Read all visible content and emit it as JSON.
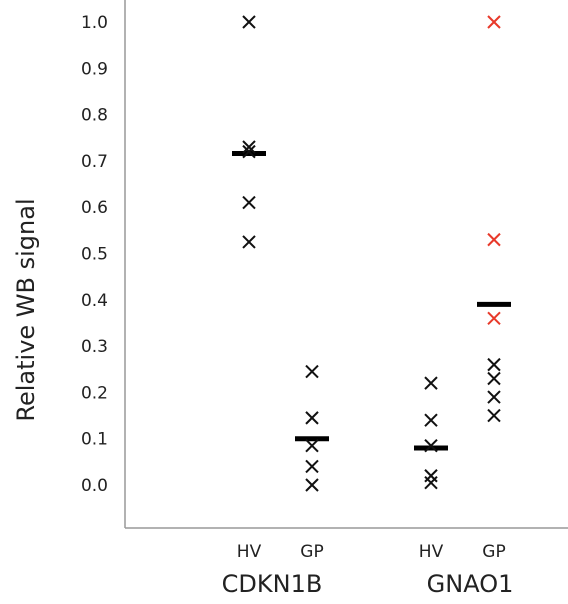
{
  "chart_data": {
    "type": "scatter",
    "title": "",
    "ylabel": "Relative WB signal",
    "xlabel": "",
    "ylim": [
      -0.13,
      1.02
    ],
    "yticks": [
      "1.0",
      "0.9",
      "0.8",
      "0.7",
      "0.6",
      "0.5",
      "0.4",
      "0.3",
      "0.2",
      "0.1",
      "0.0"
    ],
    "grid": false,
    "legend": "none",
    "colors": {
      "default": "#111111",
      "highlight": "#e8392a",
      "median": "#000000",
      "axis": "#999999"
    },
    "groups": [
      {
        "name": "CDKN1B",
        "categories": [
          {
            "label": "HV",
            "median": 0.716,
            "points": [
              {
                "y": 1.0,
                "color": "default"
              },
              {
                "y": 0.73,
                "color": "default"
              },
              {
                "y": 0.72,
                "color": "default"
              },
              {
                "y": 0.61,
                "color": "default"
              },
              {
                "y": 0.525,
                "color": "default"
              }
            ]
          },
          {
            "label": "GP",
            "median": 0.1,
            "points": [
              {
                "y": 0.245,
                "color": "default"
              },
              {
                "y": 0.145,
                "color": "default"
              },
              {
                "y": 0.085,
                "color": "default"
              },
              {
                "y": 0.04,
                "color": "default"
              },
              {
                "y": 0.0,
                "color": "default"
              }
            ]
          }
        ]
      },
      {
        "name": "GNAO1",
        "categories": [
          {
            "label": "HV",
            "median": 0.08,
            "points": [
              {
                "y": 0.22,
                "color": "default"
              },
              {
                "y": 0.14,
                "color": "default"
              },
              {
                "y": 0.085,
                "color": "default"
              },
              {
                "y": 0.02,
                "color": "default"
              },
              {
                "y": 0.005,
                "color": "default"
              }
            ]
          },
          {
            "label": "GP",
            "median": 0.39,
            "points": [
              {
                "y": 1.0,
                "color": "highlight"
              },
              {
                "y": 0.53,
                "color": "highlight"
              },
              {
                "y": 0.36,
                "color": "highlight"
              },
              {
                "y": 0.26,
                "color": "default"
              },
              {
                "y": 0.23,
                "color": "default"
              },
              {
                "y": 0.19,
                "color": "default"
              },
              {
                "y": 0.15,
                "color": "default"
              }
            ]
          }
        ]
      }
    ]
  }
}
